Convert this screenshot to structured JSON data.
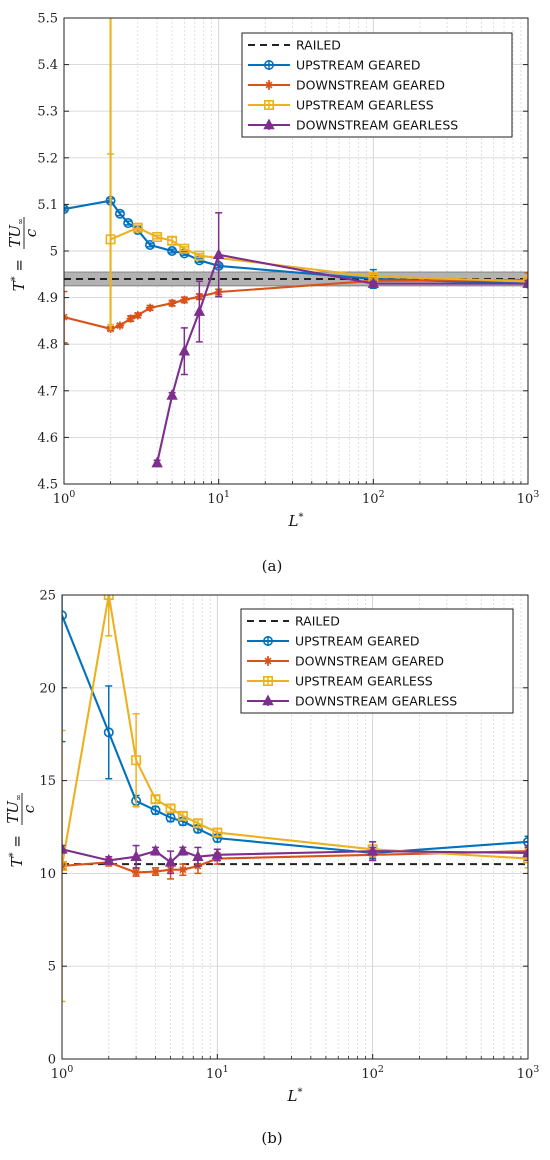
{
  "figure": {
    "panel_a_caption": "(a)",
    "panel_b_caption": "(b)"
  },
  "chart_data": [
    {
      "type": "line",
      "panel": "a",
      "xscale": "log",
      "xlim": [
        1,
        1000
      ],
      "ylim": [
        4.5,
        5.5
      ],
      "xlabel": "L*",
      "ylabel": "T* = TU∞ / c",
      "xticks": [
        1,
        10,
        100,
        1000
      ],
      "xtick_labels": [
        "10^0",
        "10^1",
        "10^2",
        "10^3"
      ],
      "yticks": [
        4.5,
        4.6,
        4.7,
        4.8,
        4.9,
        5,
        5.1,
        5.2,
        5.3,
        5.4,
        5.5
      ],
      "ytick_labels": [
        "4.5",
        "4.6",
        "4.7",
        "4.8",
        "4.9",
        "5",
        "5.1",
        "5.2",
        "5.3",
        "5.4",
        "5.5"
      ],
      "grid": true,
      "legend_position": "top-right",
      "railed_band": [
        4.925,
        4.955
      ],
      "series": [
        {
          "name": "RAILED",
          "color": "#222222",
          "dash": true,
          "marker": "none",
          "x": [
            1,
            1000
          ],
          "y": [
            4.94,
            4.94
          ]
        },
        {
          "name": "UPSTREAM GEARED",
          "color": "#0072BD",
          "marker": "circle",
          "x": [
            1,
            2,
            2.3,
            2.6,
            3,
            3.6,
            5,
            6,
            7.5,
            10,
            100,
            1000
          ],
          "y": [
            5.09,
            5.108,
            5.08,
            5.06,
            5.045,
            5.013,
            5.0,
            4.995,
            4.98,
            4.968,
            4.94,
            4.93
          ],
          "err": [
            0.004,
            0.004,
            0.004,
            0.004,
            0.004,
            0.004,
            0.004,
            0.004,
            0.004,
            0.004,
            0.02,
            0.004
          ]
        },
        {
          "name": "DOWNSTREAM GEARED",
          "color": "#D95319",
          "marker": "star",
          "x": [
            1,
            2,
            2.3,
            2.7,
            3,
            3.6,
            5,
            6,
            7.5,
            10,
            100,
            1000
          ],
          "y": [
            4.858,
            4.833,
            4.84,
            4.855,
            4.862,
            4.878,
            4.888,
            4.895,
            4.902,
            4.912,
            4.936,
            4.938
          ],
          "err": [
            0.055,
            0.004,
            0.004,
            0.006,
            0.005,
            0.005,
            0.006,
            0.006,
            0.006,
            0.006,
            0.006,
            0.015
          ]
        },
        {
          "name": "UPSTREAM GEARLESS",
          "color": "#EDB120",
          "marker": "square",
          "x": [
            2,
            3,
            4,
            5,
            6,
            7.5,
            100,
            1000
          ],
          "y": [
            5.025,
            5.05,
            5.03,
            5.022,
            5.005,
            4.99,
            4.945,
            4.935
          ],
          "err": [
            0.183,
            0.005,
            0.004,
            0.008,
            0.004,
            0.004,
            0.005,
            0.005
          ]
        },
        {
          "name": "DOWNSTREAM GEARLESS",
          "color": "#7E2F8E",
          "marker": "triangle",
          "x": [
            4,
            5,
            6,
            7.5,
            10,
            100,
            1000
          ],
          "y": [
            4.545,
            4.69,
            4.785,
            4.87,
            4.992,
            4.93,
            4.93
          ],
          "err": [
            0.006,
            0.006,
            0.05,
            0.065,
            0.09,
            0.005,
            0.006
          ]
        }
      ],
      "upstream_gearless_tail": {
        "x": 2,
        "y_from": 5.5,
        "y_to": 4.83
      }
    },
    {
      "type": "line",
      "panel": "b",
      "xscale": "log",
      "xlim": [
        1,
        1000
      ],
      "ylim": [
        0,
        25
      ],
      "xlabel": "L*",
      "ylabel": "T* = TU∞ / c",
      "xticks": [
        1,
        10,
        100,
        1000
      ],
      "xtick_labels": [
        "10^0",
        "10^1",
        "10^2",
        "10^3"
      ],
      "yticks": [
        0,
        5,
        10,
        15,
        20,
        25
      ],
      "ytick_labels": [
        "0",
        "5",
        "10",
        "15",
        "20",
        "25"
      ],
      "grid": true,
      "legend_position": "top-right",
      "series": [
        {
          "name": "RAILED",
          "color": "#222222",
          "dash": true,
          "marker": "none",
          "x": [
            1,
            1000
          ],
          "y": [
            10.5,
            10.5
          ]
        },
        {
          "name": "UPSTREAM GEARED",
          "color": "#0072BD",
          "marker": "circle",
          "x": [
            1,
            2,
            3,
            4,
            5,
            6,
            7.5,
            10,
            100,
            1000
          ],
          "y": [
            23.9,
            17.6,
            13.9,
            13.4,
            13.0,
            12.8,
            12.4,
            11.9,
            11.1,
            11.7
          ],
          "err": [
            6.8,
            2.5,
            0.3,
            0.2,
            0.2,
            0.2,
            0.2,
            0.2,
            0.3,
            0.3
          ]
        },
        {
          "name": "DOWNSTREAM GEARED",
          "color": "#D95319",
          "marker": "star",
          "x": [
            1,
            2,
            3,
            4,
            5,
            6,
            7.5,
            10,
            100,
            1000
          ],
          "y": [
            10.4,
            10.6,
            10.05,
            10.1,
            10.2,
            10.2,
            10.4,
            10.8,
            11.0,
            11.2
          ],
          "err": [
            0.2,
            0.2,
            0.2,
            0.2,
            0.5,
            0.3,
            0.4,
            0.3,
            0.3,
            0.3
          ]
        },
        {
          "name": "UPSTREAM GEARLESS",
          "color": "#EDB120",
          "marker": "square",
          "x": [
            1,
            2,
            3,
            4,
            5,
            6,
            7.5,
            10,
            100,
            1000
          ],
          "y": [
            10.4,
            25.0,
            16.1,
            14.0,
            13.5,
            13.1,
            12.7,
            12.2,
            11.3,
            10.8
          ],
          "err": [
            7.3,
            2.2,
            2.5,
            0.2,
            0.2,
            0.2,
            0.2,
            0.2,
            0.4,
            0.5
          ]
        },
        {
          "name": "DOWNSTREAM GEARLESS",
          "color": "#7E2F8E",
          "marker": "triangle",
          "x": [
            1,
            2,
            3,
            4,
            5,
            6,
            7.5,
            10,
            100,
            1000
          ],
          "y": [
            11.3,
            10.7,
            10.9,
            11.2,
            10.6,
            11.2,
            10.9,
            11.0,
            11.2,
            11.1
          ],
          "err": [
            0.2,
            0.2,
            0.6,
            0.2,
            0.6,
            0.2,
            0.5,
            0.3,
            0.5,
            0.4
          ]
        }
      ]
    }
  ]
}
